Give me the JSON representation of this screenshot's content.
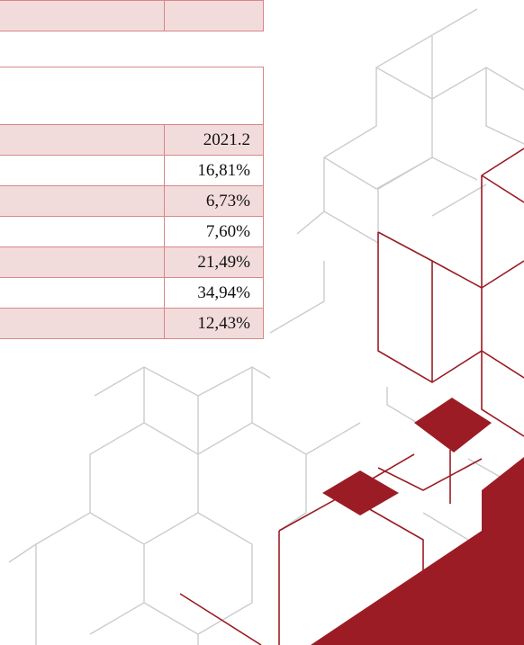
{
  "table": {
    "rows": [
      "2021.2",
      "16,81%",
      "6,73%",
      "7,60%",
      "21,49%",
      "34,94%",
      "12,43%"
    ]
  }
}
